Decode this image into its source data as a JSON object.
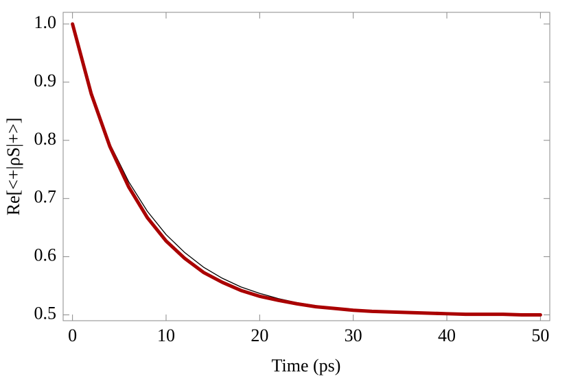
{
  "chart_data": {
    "type": "line",
    "x_label": "Time (ps)",
    "y_label": "Re[<+|ρS|+>]",
    "x": [
      0,
      2,
      4,
      6,
      8,
      10,
      12,
      14,
      16,
      18,
      20,
      22,
      24,
      26,
      28,
      30,
      32,
      34,
      36,
      38,
      40,
      42,
      44,
      46,
      48,
      50
    ],
    "series": [
      {
        "color": "#000000",
        "width": 1.3,
        "values": [
          1.0,
          0.88,
          0.794,
          0.729,
          0.678,
          0.638,
          0.607,
          0.582,
          0.563,
          0.548,
          0.537,
          0.528,
          0.521,
          0.516,
          0.512,
          0.509,
          0.507,
          0.505,
          0.504,
          0.503,
          0.502,
          0.502,
          0.501,
          0.501,
          0.501,
          0.5
        ]
      },
      {
        "color": "#aa0000",
        "width": 5,
        "values": [
          1.0,
          0.88,
          0.789,
          0.72,
          0.667,
          0.627,
          0.597,
          0.573,
          0.556,
          0.542,
          0.532,
          0.525,
          0.519,
          0.514,
          0.511,
          0.508,
          0.506,
          0.505,
          0.504,
          0.503,
          0.502,
          0.501,
          0.501,
          0.501,
          0.5,
          0.5
        ]
      }
    ],
    "xlim": [
      -1,
      51
    ],
    "ylim": [
      0.49,
      1.02
    ],
    "xticks": [
      0,
      10,
      20,
      30,
      40,
      50
    ],
    "yticks": [
      0.5,
      0.6,
      0.7,
      0.8,
      0.9,
      {
        "value": 1,
        "label": "1.0"
      }
    ]
  }
}
